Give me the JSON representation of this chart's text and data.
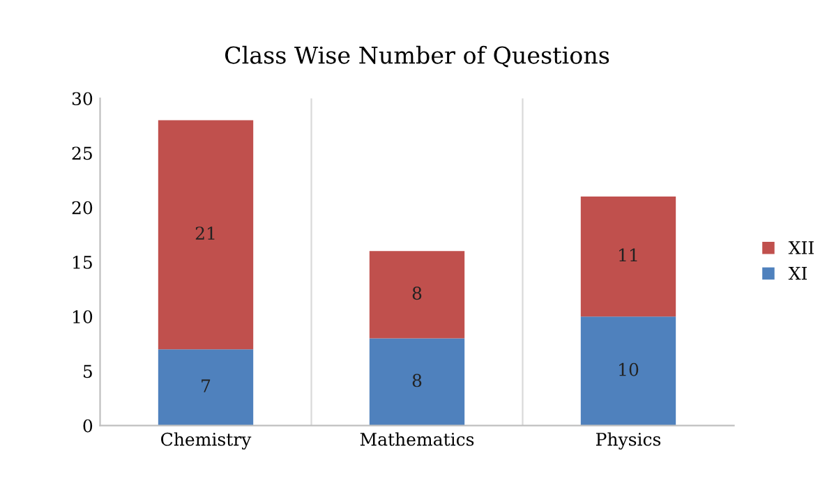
{
  "chart_data": {
    "type": "bar",
    "title": "Class Wise Number of Questions",
    "categories": [
      "Chemistry",
      "Mathematics",
      "Physics"
    ],
    "stacked": true,
    "series": [
      {
        "name": "XI",
        "color": "#4f81bd",
        "values": [
          7,
          8,
          10
        ]
      },
      {
        "name": "XII",
        "color": "#c0504d",
        "values": [
          21,
          8,
          11
        ]
      }
    ],
    "ylim": [
      0,
      30
    ],
    "yticks": [
      0,
      5,
      10,
      15,
      20,
      25,
      30
    ],
    "data_labels": true,
    "legend": "right",
    "grid": "x"
  }
}
